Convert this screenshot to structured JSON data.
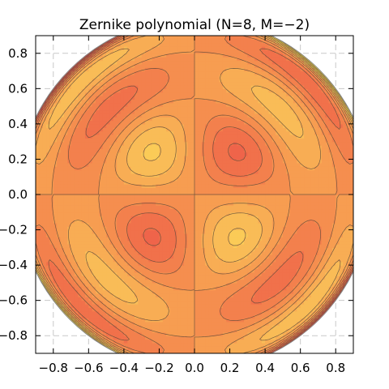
{
  "chart_data": {
    "type": "heatmap",
    "title": "Zernike polynomial (N=8, M=−2)",
    "xlabel": "",
    "ylabel": "",
    "zernike": {
      "n": 8,
      "m": -2
    },
    "xlim": [
      -0.9,
      0.9
    ],
    "ylim": [
      -0.9,
      0.9
    ],
    "x_ticks": [
      -0.8,
      -0.6,
      -0.4,
      -0.2,
      0.0,
      0.2,
      0.4,
      0.6,
      0.8
    ],
    "y_ticks": [
      -0.8,
      -0.6,
      -0.4,
      -0.2,
      0.0,
      0.2,
      0.4,
      0.6,
      0.8
    ],
    "x_tick_labels": [
      "−0.8",
      "−0.6",
      "−0.4",
      "−0.2",
      "0.0",
      "0.2",
      "0.4",
      "0.6",
      "0.8"
    ],
    "y_tick_labels": [
      "−0.8",
      "−0.6",
      "−0.4",
      "−0.2",
      "0.0",
      "0.2",
      "0.4",
      "0.6",
      "0.8"
    ],
    "grid": true,
    "contour_lines": true,
    "contour_line_color": "#5a4a3a",
    "colormap": [
      "#e8454a",
      "#f06a4a",
      "#f69550",
      "#fac458",
      "#fef050"
    ],
    "disk_radius": 1.0,
    "disk_outline_color": "#888888"
  }
}
